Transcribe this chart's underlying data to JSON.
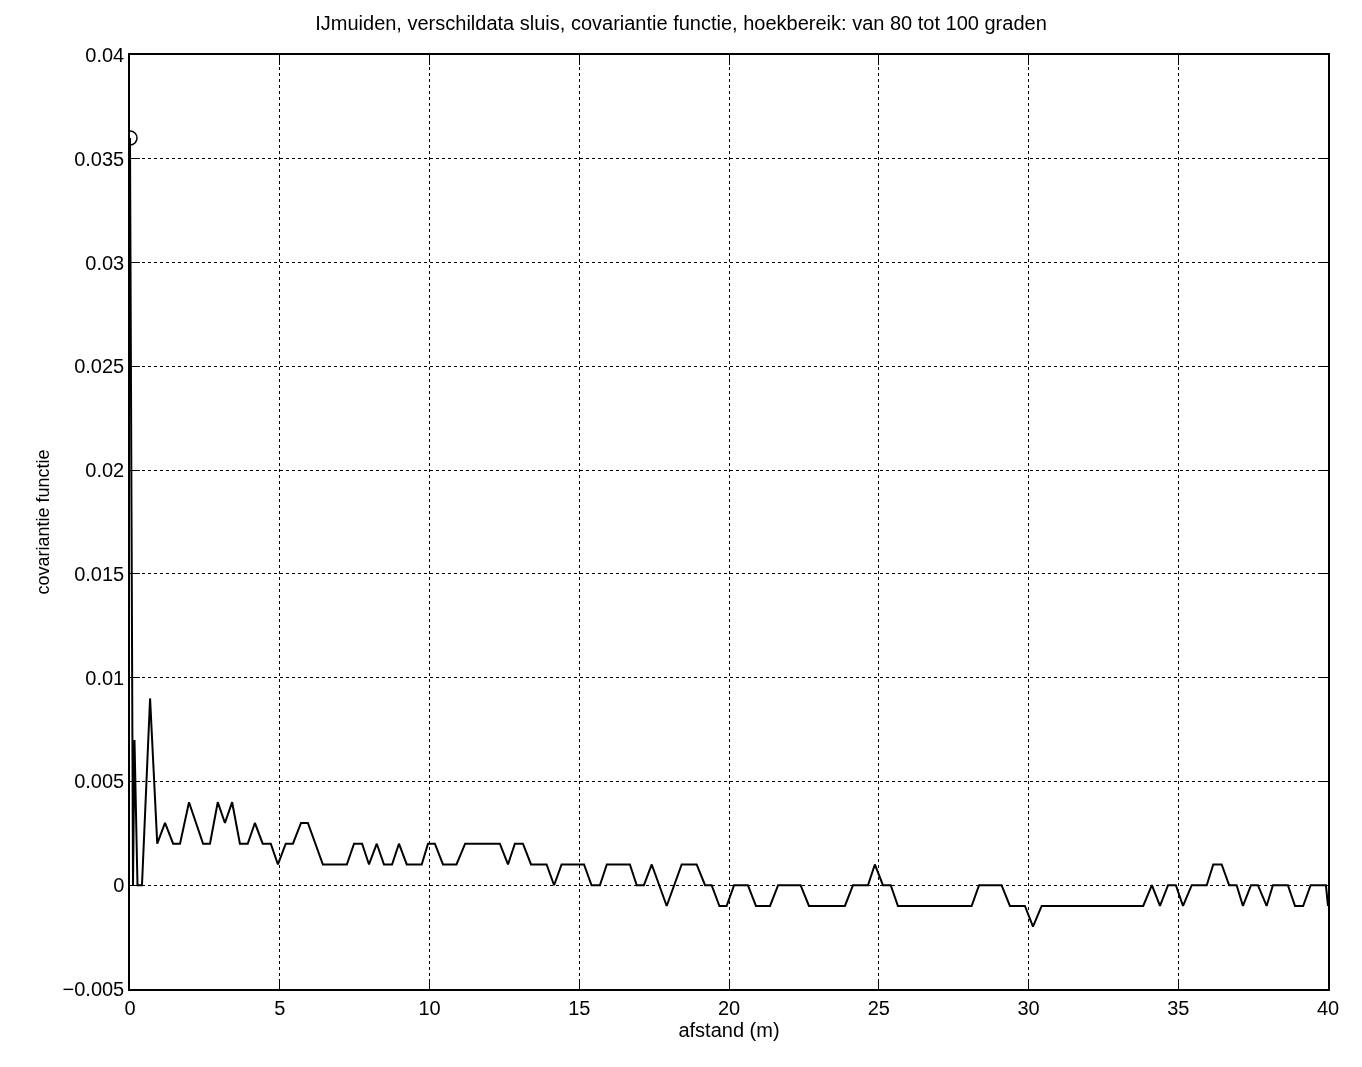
{
  "chart_data": {
    "type": "line",
    "title": "IJmuiden, verschildata sluis, covariantie functie, hoekbereik: van 80 tot 100 graden",
    "xlabel": "afstand (m)",
    "ylabel": "covariantie functie",
    "series": [
      {
        "color": "#000000",
        "marker": "none",
        "line_style": "solid",
        "x": [
          0,
          0.1,
          0.15,
          0.25,
          0.4,
          0.67,
          0.91,
          1.17,
          1.44,
          1.67,
          1.97,
          2.44,
          2.67,
          2.93,
          3.17,
          3.41,
          3.67,
          3.93,
          4.17,
          4.43,
          4.7,
          4.94,
          5.2,
          5.44,
          5.71,
          5.94,
          6.44,
          7.24,
          7.48,
          7.75,
          7.98,
          8.24,
          8.48,
          8.75,
          8.98,
          9.24,
          9.74,
          9.95,
          10.18,
          10.45,
          10.9,
          11.19,
          12.35,
          12.62,
          12.85,
          13.12,
          13.39,
          13.91,
          14.16,
          14.41,
          15.16,
          15.41,
          15.69,
          15.92,
          16.69,
          16.92,
          17.16,
          17.42,
          17.92,
          18.42,
          18.92,
          19.2,
          19.42,
          19.68,
          19.92,
          20.17,
          20.63,
          20.9,
          21.37,
          21.64,
          22.39,
          22.67,
          23.87,
          24.14,
          24.64,
          24.87,
          25.14,
          25.4,
          25.64,
          28.1,
          28.35,
          29.1,
          29.38,
          29.88,
          30.15,
          30.44,
          33.83,
          34.12,
          34.39,
          34.66,
          34.92,
          35.16,
          35.45,
          35.95,
          36.17,
          36.45,
          36.7,
          36.95,
          37.16,
          37.43,
          37.66,
          37.95,
          38.16,
          38.66,
          38.9,
          39.17,
          39.42,
          39.93,
          40
        ],
        "values": [
          0.036,
          0,
          0.007,
          0,
          0,
          0.009,
          0.002,
          0.003,
          0.002,
          0.002,
          0.004,
          0.002,
          0.002,
          0.004,
          0.003,
          0.004,
          0.002,
          0.002,
          0.003,
          0.002,
          0.002,
          0.001,
          0.002,
          0.002,
          0.003,
          0.003,
          0.001,
          0.001,
          0.002,
          0.002,
          0.001,
          0.002,
          0.001,
          0.001,
          0.002,
          0.001,
          0.001,
          0.002,
          0.002,
          0.001,
          0.001,
          0.002,
          0.002,
          0.001,
          0.002,
          0.002,
          0.001,
          0.001,
          0,
          0.001,
          0.001,
          0,
          0,
          0.001,
          0.001,
          0,
          0,
          0.001,
          -0.001,
          0.001,
          0.001,
          0,
          0,
          -0.001,
          -0.001,
          0,
          0,
          -0.001,
          -0.001,
          0,
          0,
          -0.001,
          -0.001,
          0,
          0,
          0.001,
          0,
          0,
          -0.001,
          -0.001,
          0,
          0,
          -0.001,
          -0.001,
          -0.002,
          -0.001,
          -0.001,
          0,
          -0.001,
          0,
          0,
          -0.001,
          0,
          0,
          0.001,
          0.001,
          0,
          0,
          -0.001,
          0,
          0,
          -0.001,
          0,
          0,
          -0.001,
          -0.001,
          0,
          0,
          -0.001
        ]
      },
      {
        "type": "scatter",
        "color": "#000000",
        "marker": "circle",
        "x": [
          0
        ],
        "values": [
          0.036
        ]
      }
    ],
    "xlim": [
      0,
      40
    ],
    "xticks": [
      0,
      5,
      10,
      15,
      20,
      25,
      30,
      35,
      40
    ],
    "ylim": [
      -0.005,
      0.04
    ],
    "yticks": [
      {
        "value": -0.005,
        "label": "−0.005"
      },
      0,
      0.005,
      0.01,
      0.015,
      0.02,
      0.025,
      0.03,
      0.035,
      0.04
    ],
    "grid": true
  }
}
